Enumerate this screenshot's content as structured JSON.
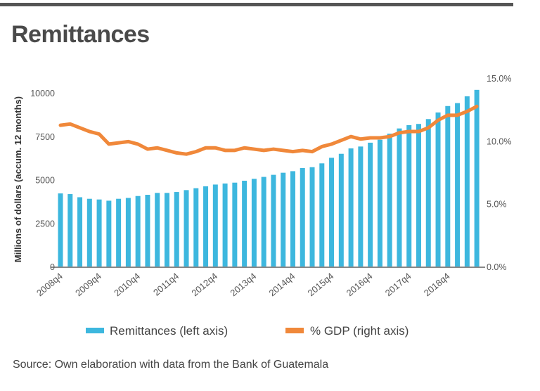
{
  "title": "Remittances",
  "source": "Source: Own elaboration with data from the Bank of Guatemala",
  "chart_data": {
    "type": "bar+line",
    "ylabel": "Millions of dollars (accum. 12 months)",
    "ylim": [
      0,
      10000
    ],
    "yticks": [
      "0",
      "2500",
      "5000",
      "7500",
      "10000"
    ],
    "y2lim": [
      0,
      15
    ],
    "y2ticks": [
      "0.0%",
      "5.0%",
      "10.0%",
      "15.0%"
    ],
    "grid": false,
    "legend_position": "bottom",
    "colors": {
      "bars": "#3db7de",
      "line": "#f0883a",
      "axis": "#888888"
    },
    "categories": [
      "2008q4",
      "2009q1",
      "2009q2",
      "2009q3",
      "2009q4",
      "2010q1",
      "2010q2",
      "2010q3",
      "2010q4",
      "2011q1",
      "2011q2",
      "2011q3",
      "2011q4",
      "2012q1",
      "2012q2",
      "2012q3",
      "2012q4",
      "2013q1",
      "2013q2",
      "2013q3",
      "2013q4",
      "2014q1",
      "2014q2",
      "2014q3",
      "2014q4",
      "2015q1",
      "2015q2",
      "2015q3",
      "2015q4",
      "2016q1",
      "2016q2",
      "2016q3",
      "2016q4",
      "2017q1",
      "2017q2",
      "2017q3",
      "2017q4",
      "2018q1",
      "2018q2",
      "2018q3",
      "2018q4",
      "2019q1",
      "2019q2",
      "2019q3"
    ],
    "xtick_labels": [
      "2008q4",
      "2009q4",
      "2010q4",
      "2011q4",
      "2012q4",
      "2013q4",
      "2014q4",
      "2015q4",
      "2016q4",
      "2017q4",
      "2018q4"
    ],
    "series": [
      {
        "name": "Remittances (left axis)",
        "type": "bar",
        "axis": "left",
        "values": [
          4250,
          4210,
          4030,
          3940,
          3900,
          3830,
          3940,
          3990,
          4100,
          4170,
          4280,
          4280,
          4330,
          4440,
          4550,
          4660,
          4760,
          4820,
          4870,
          4980,
          5090,
          5200,
          5320,
          5440,
          5530,
          5710,
          5760,
          5980,
          6300,
          6530,
          6840,
          6950,
          7170,
          7340,
          7690,
          7990,
          8180,
          8250,
          8530,
          8910,
          9280,
          9450,
          9840,
          10210
        ]
      },
      {
        "name": "% GDP (right axis)",
        "type": "line",
        "axis": "right",
        "values": [
          11.3,
          11.4,
          11.1,
          10.8,
          10.6,
          9.8,
          9.9,
          10.0,
          9.8,
          9.4,
          9.5,
          9.3,
          9.1,
          9.0,
          9.2,
          9.5,
          9.5,
          9.3,
          9.3,
          9.5,
          9.4,
          9.3,
          9.4,
          9.3,
          9.2,
          9.3,
          9.2,
          9.6,
          9.8,
          10.1,
          10.4,
          10.2,
          10.3,
          10.3,
          10.4,
          10.7,
          10.8,
          10.8,
          11.1,
          11.7,
          12.1,
          12.1,
          12.4,
          12.8
        ]
      }
    ]
  }
}
